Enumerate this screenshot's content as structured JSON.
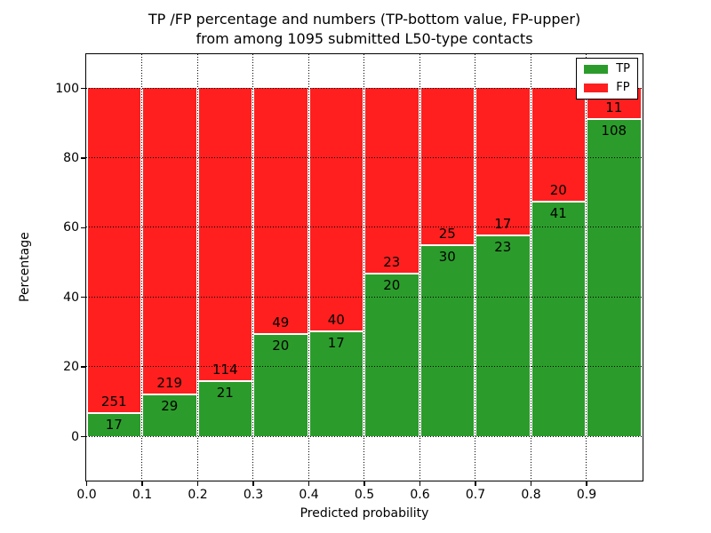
{
  "figure": {
    "title_line1": "TP /FP percentage and numbers (TP-bottom value, FP-upper)",
    "title_line2": "from among 1095 submitted L50-type contacts"
  },
  "chart_data": {
    "type": "bar",
    "stacked": true,
    "percent_normalized": true,
    "title": "TP /FP percentage and numbers (TP-bottom value, FP-upper) from among 1095 submitted L50-type contacts",
    "xlabel": "Predicted probability",
    "ylabel": "Percentage",
    "total_contacts": 1095,
    "bin_edges": [
      0.0,
      0.1,
      0.2,
      0.3,
      0.4,
      0.5,
      0.6,
      0.7,
      0.8,
      0.9,
      1.0
    ],
    "series": [
      {
        "name": "TP",
        "color": "#2b9c2b",
        "counts": [
          17,
          29,
          21,
          20,
          17,
          20,
          30,
          23,
          41,
          108
        ]
      },
      {
        "name": "FP",
        "color": "#ff1f1f",
        "counts": [
          251,
          219,
          114,
          49,
          40,
          23,
          25,
          17,
          20,
          11
        ]
      }
    ],
    "tp_percent": [
      6.3,
      11.7,
      15.6,
      29.0,
      29.8,
      46.5,
      54.5,
      57.5,
      67.2,
      90.8
    ],
    "yticks": [
      0,
      20,
      40,
      60,
      80,
      100
    ],
    "xtick_labels": [
      "0.0",
      "0.1",
      "0.2",
      "0.3",
      "0.4",
      "0.5",
      "0.6",
      "0.7",
      "0.8",
      "0.9"
    ],
    "xlim": [
      0.0,
      1.0
    ],
    "ylim_display": [
      -12.2,
      109.7
    ],
    "grid": "dotted",
    "legend": {
      "position": "upper right",
      "entries": [
        "TP",
        "FP"
      ]
    }
  }
}
